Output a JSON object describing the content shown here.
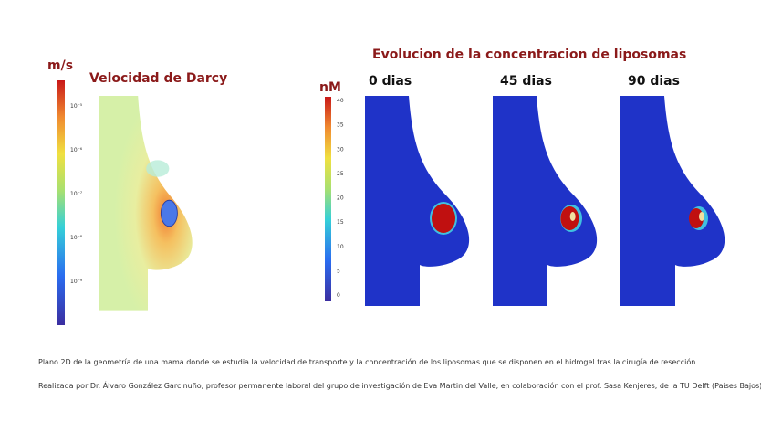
{
  "darcy": {
    "unit": "m/s",
    "title": "Velocidad de Darcy",
    "colorbar_ticks": [
      "10⁻⁵",
      "10⁻⁶",
      "10⁻⁷",
      "10⁻⁸",
      "10⁻⁹"
    ]
  },
  "concentration": {
    "title": "Evolucion de la concentracion de liposomas",
    "unit": "nM",
    "colorbar_ticks": [
      "40",
      "35",
      "30",
      "25",
      "20",
      "15",
      "10",
      "5",
      "0"
    ],
    "panels": [
      "0 dias",
      "45 dias",
      "90 dias"
    ]
  },
  "caption": [
    "Plano 2D de la geometría de una mama donde se estudia la velocidad de transporte y la concentración de los liposomas que se disponen en el hidrogel tras la cirugía de resección.",
    "Realizada por Dr. Álvaro González Garcinuño, profesor permanente laboral del grupo de investigación de Eva Martin del Valle, en colaboración con el prof. Sasa Kenjeres, de la TU Delft (Países Bajos)."
  ]
}
